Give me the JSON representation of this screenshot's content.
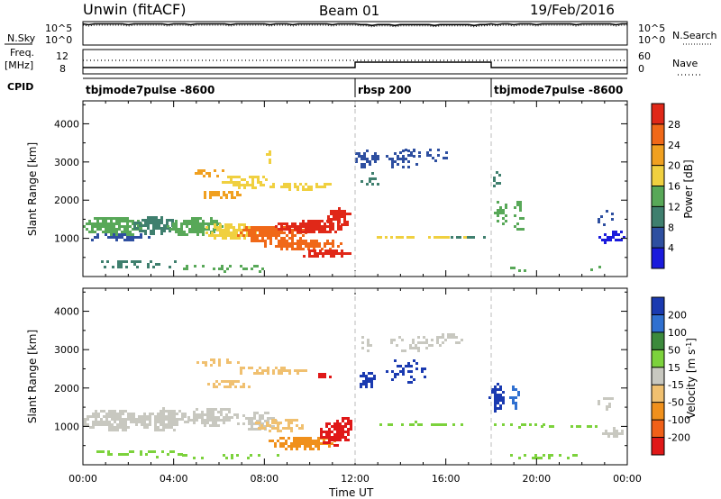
{
  "header": {
    "station": "Unwin (fitACF)",
    "beam": "Beam 01",
    "date": "19/Feb/2016"
  },
  "left_labels": {
    "nsky": "N.Sky",
    "freq": "Freq.",
    "mhz": "[MHz]",
    "cpid": "CPID"
  },
  "right_labels": {
    "nsearch": "N.Search",
    "nave": "Nave"
  },
  "noise_axis": {
    "top": "10^5",
    "bottom": "10^0"
  },
  "noise_axis_right": {
    "top": "10^5",
    "bottom": "10^0"
  },
  "freq_axis": {
    "top": "12",
    "bottom": "8"
  },
  "nave_axis": {
    "top": "60",
    "bottom": "0"
  },
  "cpid_segments": [
    {
      "label": "tbjmode7pulse -8600",
      "start_hour": 0,
      "end_hour": 12
    },
    {
      "label": "rbsp 200",
      "start_hour": 12,
      "end_hour": 18
    },
    {
      "label": "tbjmode7pulse -8600",
      "start_hour": 18,
      "end_hour": 24
    }
  ],
  "colors": {
    "power_scale": [
      "#1a1adc",
      "#2e4fa0",
      "#3f7f6e",
      "#58a858",
      "#f0d040",
      "#f0a020",
      "#f06818",
      "#e02818"
    ],
    "velocity_scale": [
      "#1a3ab0",
      "#3070d0",
      "#3c8a3c",
      "#7cd23c",
      "#c8c8c0",
      "#f0c070",
      "#f0901c",
      "#f06018",
      "#e01818"
    ]
  },
  "chart_data": [
    {
      "type": "heatmap",
      "title": "",
      "xlabel": "",
      "ylabel": "Slant Range [km]",
      "xlim": [
        0,
        24
      ],
      "ylim": [
        0,
        4600
      ],
      "yticks": [
        "1000",
        "2000",
        "3000",
        "4000"
      ],
      "colorbar": {
        "label": "Power [dB]",
        "ticks": [
          "4",
          "8",
          "12",
          "16",
          "20",
          "24",
          "28"
        ]
      }
    },
    {
      "type": "heatmap",
      "title": "",
      "xlabel": "Time UT",
      "ylabel": "Slant Range [km]",
      "xlim": [
        0,
        24
      ],
      "ylim": [
        0,
        4600
      ],
      "xticks": [
        "00:00",
        "04:00",
        "08:00",
        "12:00",
        "16:00",
        "20:00",
        "00:00"
      ],
      "yticks": [
        "1000",
        "2000",
        "3000",
        "4000"
      ],
      "colorbar": {
        "label": "Velocity [m s^-1]",
        "ticks": [
          "200",
          "100",
          "50",
          "15",
          "-15",
          "-50",
          "-100",
          "-200"
        ]
      }
    }
  ]
}
